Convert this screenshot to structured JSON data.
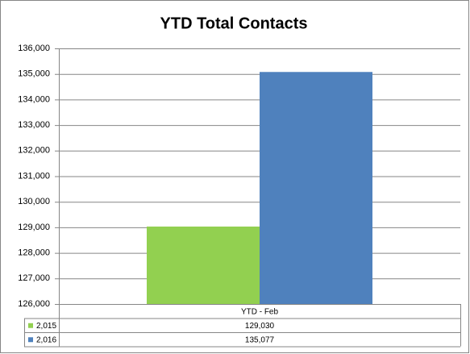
{
  "chart_data": {
    "type": "bar",
    "title": "YTD Total Contacts",
    "categories": [
      "YTD - Feb"
    ],
    "series": [
      {
        "name": "2,015",
        "color": "#92d050",
        "values": [
          129030
        ],
        "value_labels": [
          "129,030"
        ]
      },
      {
        "name": "2,016",
        "color": "#4f81bd",
        "values": [
          135077
        ],
        "value_labels": [
          "135,077"
        ]
      }
    ],
    "ylim": [
      126000,
      136000
    ],
    "yticks": [
      {
        "value": 126000,
        "label": "126,000"
      },
      {
        "value": 127000,
        "label": "127,000"
      },
      {
        "value": 128000,
        "label": "128,000"
      },
      {
        "value": 129000,
        "label": "129,000"
      },
      {
        "value": 130000,
        "label": "130,000"
      },
      {
        "value": 131000,
        "label": "131,000"
      },
      {
        "value": 132000,
        "label": "132,000"
      },
      {
        "value": 133000,
        "label": "133,000"
      },
      {
        "value": 134000,
        "label": "134,000"
      },
      {
        "value": 135000,
        "label": "135,000"
      },
      {
        "value": 136000,
        "label": "136,000"
      }
    ],
    "grid": true
  }
}
